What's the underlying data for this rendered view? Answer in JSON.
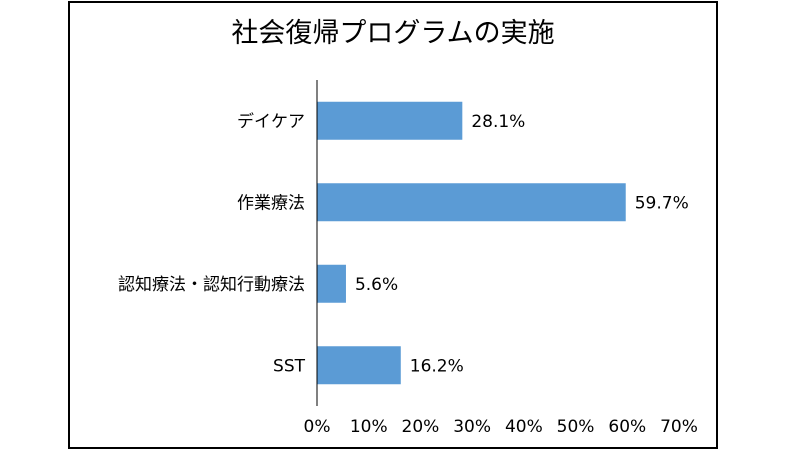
{
  "chart_data": {
    "type": "bar",
    "orientation": "horizontal",
    "title": "社会復帰プログラムの実施",
    "xlabel": "",
    "ylabel": "",
    "categories": [
      "デイケア",
      "作業療法",
      "認知療法・認知行動療法",
      "SST"
    ],
    "values": [
      28.1,
      59.7,
      5.6,
      16.2
    ],
    "data_labels": [
      "28.1%",
      "59.7%",
      "5.6%",
      "16.2%"
    ],
    "xlim": [
      0,
      70
    ],
    "x_ticks": [
      0,
      10,
      20,
      30,
      40,
      50,
      60,
      70
    ],
    "x_tick_labels": [
      "0%",
      "10%",
      "20%",
      "30%",
      "40%",
      "50%",
      "60%",
      "70%"
    ],
    "grid": false,
    "legend": "none",
    "bar_color": "#5B9BD5"
  }
}
